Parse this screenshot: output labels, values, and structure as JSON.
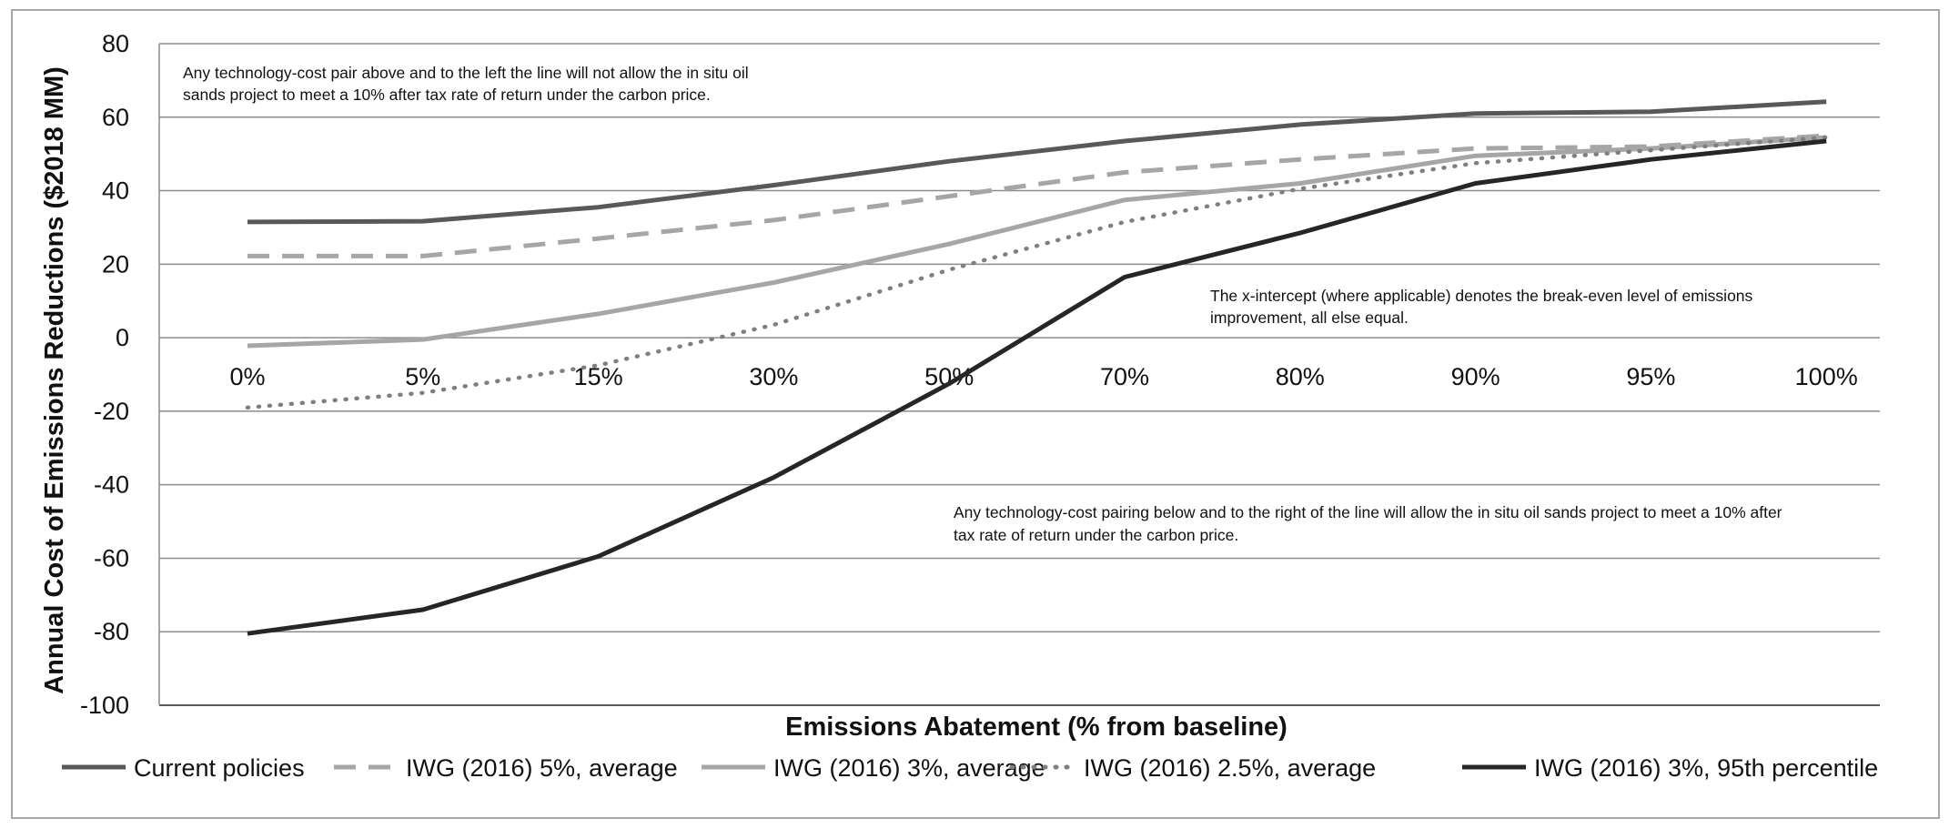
{
  "chart_data": {
    "type": "line",
    "title": "",
    "xlabel": "Emissions Abatement (% from baseline)",
    "ylabel": "Annual Cost of Emissions Reductions ($2018 MM)",
    "categories": [
      "0%",
      "5%",
      "15%",
      "30%",
      "50%",
      "70%",
      "80%",
      "90%",
      "95%",
      "100%"
    ],
    "ylim": [
      -100,
      80
    ],
    "yticks": [
      80,
      60,
      40,
      20,
      0,
      -20,
      -40,
      -60,
      -80,
      -100
    ],
    "grid": true,
    "legend_position": "bottom",
    "series": [
      {
        "name": "Current policies",
        "color": "#595959",
        "dash": "solid",
        "values": [
          31.5,
          31.7,
          35.5,
          41.5,
          48,
          53.5,
          58,
          61,
          61.5,
          64.2
        ]
      },
      {
        "name": "IWG (2016) 5%, average",
        "color": "#a6a6a6",
        "dash": "dashed",
        "values": [
          22.2,
          22.2,
          27,
          32,
          38.5,
          45,
          48.5,
          51.5,
          52,
          55
        ]
      },
      {
        "name": "IWG (2016) 3%, average",
        "color": "#a6a6a6",
        "dash": "solid",
        "values": [
          -2.2,
          -0.5,
          6.5,
          15,
          25.5,
          37.5,
          42,
          49.5,
          51.5,
          54.5
        ]
      },
      {
        "name": "IWG (2016) 2.5%, average",
        "color": "#7f7f7f",
        "dash": "dotted",
        "values": [
          -19,
          -15,
          -7.5,
          3.5,
          18.5,
          31.5,
          40.5,
          47.5,
          51,
          54.5
        ]
      },
      {
        "name": "IWG (2016) 3%, 95th percentile",
        "color": "#262626",
        "dash": "solid",
        "values": [
          -80.5,
          -74,
          -59.5,
          -38,
          -12.5,
          16.5,
          28.5,
          42,
          48.5,
          53.5
        ]
      }
    ],
    "annotations": [
      {
        "lines": [
          "Any technology-cost pair above and to the left the line will not allow the in situ oil",
          "sands project to meet a 10% after tax rate of return under the carbon price."
        ]
      },
      {
        "lines": [
          "The x-intercept (where applicable) denotes the break-even level of emissions",
          "improvement, all else equal."
        ]
      },
      {
        "lines": [
          "Any technology-cost pairing below and to the right of the line will allow the in situ oil sands project to meet a 10% after",
          "tax rate of return under the carbon price."
        ]
      }
    ]
  }
}
